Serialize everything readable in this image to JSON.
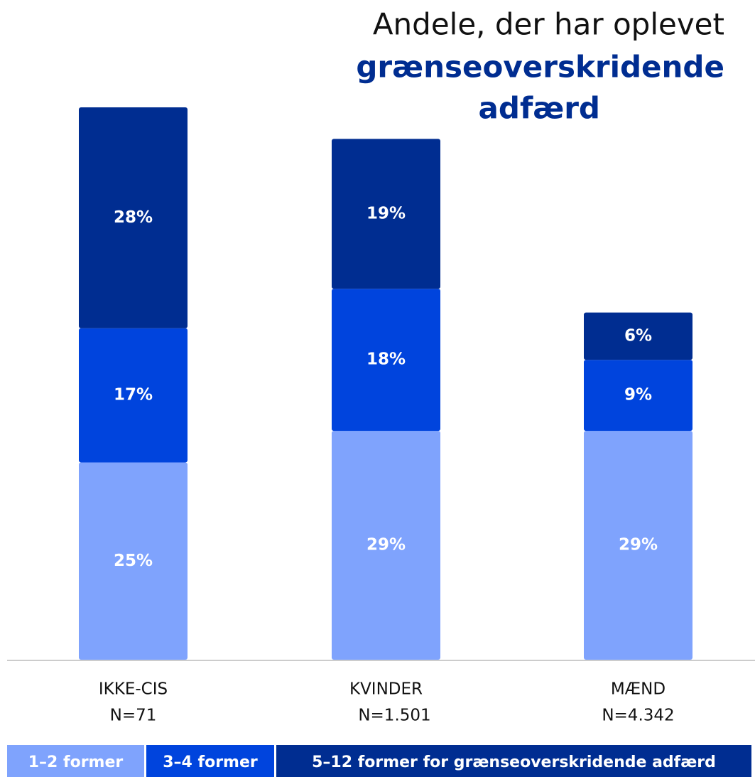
{
  "chart_data": {
    "type": "stacked_bar",
    "title": "Andele, der har oplevet",
    "title_emphasis": [
      "grænseoverskridende",
      "adfærd"
    ],
    "categories": [
      "IKKE-CIS",
      "KVINDER",
      "MÆND"
    ],
    "category_counts": [
      "N=71",
      "N=1.501",
      "N=4.342"
    ],
    "series": [
      {
        "name": "1–2 former",
        "color": "#7fa3fd",
        "values": [
          25,
          29,
          29
        ],
        "value_labels": [
          "25%",
          "29%",
          "29%"
        ]
      },
      {
        "name": "3–4 former",
        "color": "#0044dd",
        "values": [
          17,
          18,
          9
        ],
        "value_labels": [
          "17%",
          "18%",
          "9%"
        ]
      },
      {
        "name": "5–12 former for grænseoverskridende adfærd",
        "color": "#002d91",
        "values": [
          28,
          19,
          6
        ],
        "value_labels": [
          "28%",
          "19%",
          "6%"
        ]
      }
    ]
  }
}
